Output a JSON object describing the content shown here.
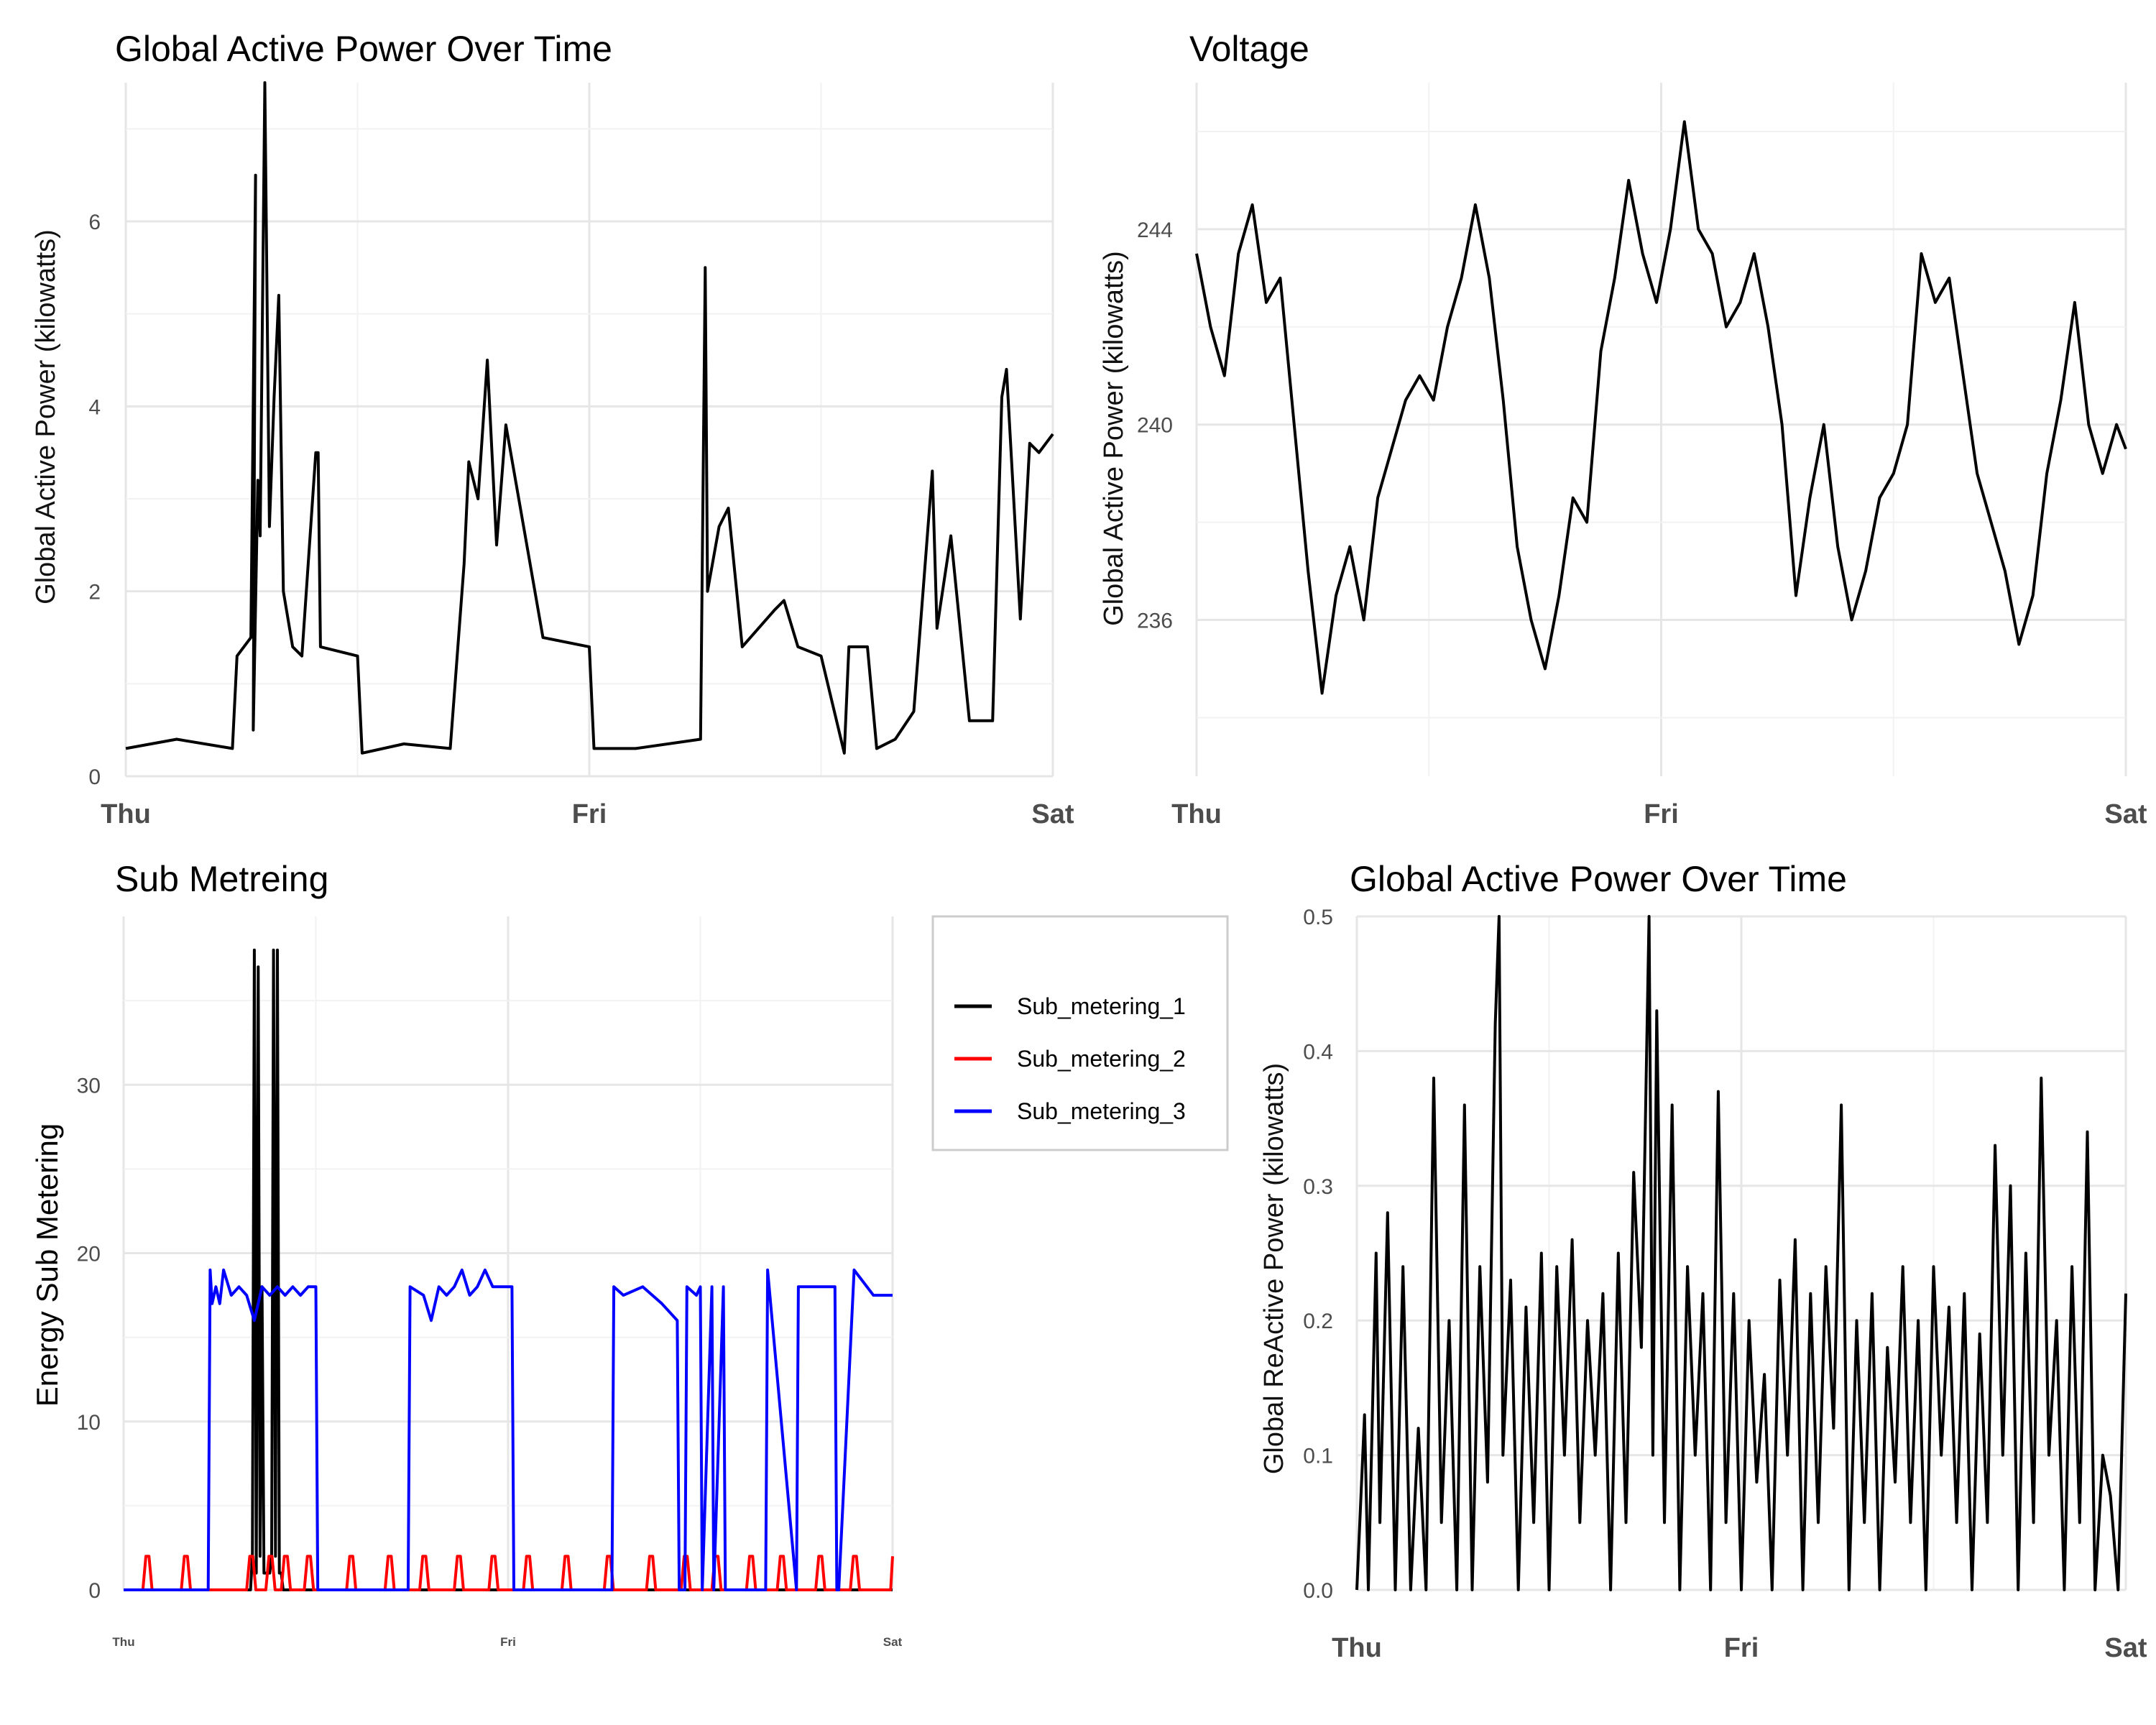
{
  "chart_data": [
    {
      "id": "p1",
      "type": "line",
      "title": "Global Active Power Over Time",
      "xlabel": "",
      "ylabel": "Global Active Power (kilowatts)",
      "x_tick_labels": [
        "Thu",
        "Fri",
        "Sat"
      ],
      "y_ticks": [
        0,
        2,
        4,
        6
      ],
      "xlim": [
        0,
        2
      ],
      "ylim": [
        0,
        7.5
      ],
      "grid": true,
      "line_color": "#000000",
      "x": [
        0,
        0.11,
        0.23,
        0.24,
        0.27,
        0.28,
        0.275,
        0.285,
        0.29,
        0.3,
        0.31,
        0.32,
        0.33,
        0.34,
        0.36,
        0.38,
        0.41,
        0.415,
        0.42,
        0.5,
        0.51,
        0.6,
        0.7,
        0.73,
        0.74,
        0.76,
        0.78,
        0.8,
        0.82,
        0.9,
        1.0,
        1.01,
        1.1,
        1.24,
        1.25,
        1.255,
        1.28,
        1.3,
        1.33,
        1.4,
        1.42,
        1.45,
        1.5,
        1.55,
        1.56,
        1.6,
        1.62,
        1.66,
        1.7,
        1.74,
        1.75,
        1.78,
        1.82,
        1.87,
        1.89,
        1.9,
        1.93,
        1.95,
        1.97,
        2.0
      ],
      "y": [
        0.3,
        0.4,
        0.3,
        1.3,
        1.5,
        6.5,
        0.5,
        3.2,
        2.6,
        7.5,
        2.7,
        4.1,
        5.2,
        2.0,
        1.4,
        1.3,
        3.5,
        3.5,
        1.4,
        1.3,
        0.25,
        0.35,
        0.3,
        2.3,
        3.4,
        3.0,
        4.5,
        2.5,
        3.8,
        1.5,
        1.4,
        0.3,
        0.3,
        0.4,
        5.5,
        2.0,
        2.7,
        2.9,
        1.4,
        1.8,
        1.9,
        1.4,
        1.3,
        0.25,
        1.4,
        1.4,
        0.3,
        0.4,
        0.7,
        3.3,
        1.6,
        2.6,
        0.6,
        0.6,
        4.1,
        4.4,
        1.7,
        3.6,
        3.5,
        3.7
      ]
    },
    {
      "id": "p2",
      "type": "line",
      "title": "Voltage",
      "xlabel": "",
      "ylabel": "Global Active Power (kilowatts)",
      "x_tick_labels": [
        "Thu",
        "Fri",
        "Sat"
      ],
      "y_ticks": [
        236,
        240,
        244
      ],
      "xlim": [
        0,
        2
      ],
      "ylim": [
        232.8,
        247.0
      ],
      "grid": true,
      "line_color": "#000000",
      "x": [
        0,
        0.03,
        0.06,
        0.09,
        0.12,
        0.15,
        0.18,
        0.21,
        0.24,
        0.27,
        0.3,
        0.33,
        0.36,
        0.39,
        0.42,
        0.45,
        0.48,
        0.51,
        0.54,
        0.57,
        0.6,
        0.63,
        0.66,
        0.69,
        0.72,
        0.75,
        0.78,
        0.81,
        0.84,
        0.87,
        0.9,
        0.93,
        0.96,
        0.99,
        1.02,
        1.05,
        1.08,
        1.11,
        1.14,
        1.17,
        1.2,
        1.23,
        1.26,
        1.29,
        1.32,
        1.35,
        1.38,
        1.41,
        1.44,
        1.47,
        1.5,
        1.53,
        1.56,
        1.59,
        1.62,
        1.65,
        1.68,
        1.71,
        1.74,
        1.77,
        1.8,
        1.83,
        1.86,
        1.89,
        1.92,
        1.95,
        1.98,
        2.0
      ],
      "y": [
        243.5,
        242.0,
        241.0,
        243.5,
        244.5,
        242.5,
        243.0,
        240.0,
        237.0,
        234.5,
        236.5,
        237.5,
        236.0,
        238.5,
        239.5,
        240.5,
        241.0,
        240.5,
        242.0,
        243.0,
        244.5,
        243.0,
        240.5,
        237.5,
        236.0,
        235.0,
        236.5,
        238.5,
        238.0,
        241.5,
        243.0,
        245.0,
        243.5,
        242.5,
        244.0,
        246.2,
        244.0,
        243.5,
        242.0,
        242.5,
        243.5,
        242.0,
        240.0,
        236.5,
        238.5,
        240.0,
        237.5,
        236.0,
        237.0,
        238.5,
        239.0,
        240.0,
        243.5,
        242.5,
        243.0,
        241.0,
        239.0,
        238.0,
        237.0,
        235.5,
        236.5,
        239.0,
        240.5,
        242.5,
        240.0,
        239.0,
        240.0,
        239.5
      ]
    },
    {
      "id": "p3",
      "type": "line",
      "title": "Sub Metreing",
      "xlabel": "",
      "ylabel": "Energy  Sub Metering",
      "x_tick_labels": [
        "Thu",
        "Fri",
        "Sat"
      ],
      "y_ticks": [
        0,
        10,
        20,
        30
      ],
      "xlim": [
        0,
        2
      ],
      "ylim": [
        0,
        40
      ],
      "grid": true,
      "legend": "right-top",
      "series": [
        {
          "name": "Sub_metering_1",
          "color": "#000000",
          "x": [
            0,
            0.33,
            0.335,
            0.34,
            0.345,
            0.35,
            0.355,
            0.36,
            0.365,
            0.38,
            0.385,
            0.39,
            0.395,
            0.4,
            0.405,
            0.41,
            0.415,
            0.42,
            0.425,
            0.43,
            2.0
          ],
          "y": [
            0,
            0,
            2,
            38,
            1,
            37,
            2,
            18,
            1,
            1,
            2,
            38,
            2,
            38,
            1,
            1,
            0,
            0,
            0,
            0,
            0
          ]
        },
        {
          "name": "Sub_metering_2",
          "color": "#ff0000",
          "x": [
            0,
            0.05,
            0.058,
            0.066,
            0.074,
            0.15,
            0.158,
            0.166,
            0.174,
            0.32,
            0.328,
            0.336,
            0.344,
            0.37,
            0.378,
            0.386,
            0.394,
            0.41,
            0.418,
            0.426,
            0.434,
            0.47,
            0.478,
            0.486,
            0.494,
            0.58,
            0.588,
            0.596,
            0.604,
            0.68,
            0.688,
            0.696,
            0.704,
            0.77,
            0.778,
            0.786,
            0.794,
            0.86,
            0.868,
            0.876,
            0.884,
            0.95,
            0.958,
            0.966,
            0.974,
            1.04,
            1.048,
            1.056,
            1.064,
            1.14,
            1.148,
            1.156,
            1.164,
            1.25,
            1.258,
            1.266,
            1.274,
            1.36,
            1.368,
            1.376,
            1.384,
            1.45,
            1.458,
            1.466,
            1.474,
            1.53,
            1.538,
            1.546,
            1.554,
            1.62,
            1.628,
            1.636,
            1.644,
            1.7,
            1.708,
            1.716,
            1.724,
            1.8,
            1.808,
            1.816,
            1.824,
            1.89,
            1.898,
            1.906,
            1.914,
            1.995,
            2.0
          ],
          "y": [
            0,
            0,
            2,
            2,
            0,
            0,
            2,
            2,
            0,
            0,
            2,
            2,
            0,
            0,
            2,
            2,
            0,
            0,
            2,
            2,
            0,
            0,
            2,
            2,
            0,
            0,
            2,
            2,
            0,
            0,
            2,
            2,
            0,
            0,
            2,
            2,
            0,
            0,
            2,
            2,
            0,
            0,
            2,
            2,
            0,
            0,
            2,
            2,
            0,
            0,
            2,
            2,
            0,
            0,
            2,
            2,
            0,
            0,
            2,
            2,
            0,
            0,
            2,
            2,
            0,
            0,
            2,
            2,
            0,
            0,
            2,
            2,
            0,
            0,
            2,
            2,
            0,
            0,
            2,
            2,
            0,
            0,
            2,
            2,
            0,
            0,
            2
          ]
        },
        {
          "name": "Sub_metering_3",
          "color": "#0000ff",
          "x": [
            0,
            0.22,
            0.225,
            0.23,
            0.24,
            0.25,
            0.26,
            0.28,
            0.3,
            0.32,
            0.34,
            0.36,
            0.38,
            0.4,
            0.42,
            0.44,
            0.46,
            0.48,
            0.5,
            0.505,
            0.74,
            0.745,
            0.78,
            0.8,
            0.82,
            0.84,
            0.86,
            0.88,
            0.9,
            0.92,
            0.94,
            0.96,
            0.98,
            1.0,
            1.01,
            1.015,
            1.27,
            1.275,
            1.3,
            1.35,
            1.4,
            1.44,
            1.445,
            1.46,
            1.465,
            1.49,
            1.5,
            1.505,
            1.53,
            1.535,
            1.56,
            1.565,
            1.67,
            1.675,
            1.75,
            1.755,
            1.85,
            1.855,
            1.86,
            1.9,
            1.95,
            2.0
          ],
          "y": [
            0,
            0,
            19,
            17,
            18,
            17,
            19,
            17.5,
            18,
            17.5,
            16,
            18,
            17.5,
            18,
            17.5,
            18,
            17.5,
            18,
            18,
            0,
            0,
            18,
            17.5,
            16,
            18,
            17.5,
            18,
            19,
            17.5,
            18,
            19,
            18,
            18,
            18,
            18,
            0,
            0,
            18,
            17.5,
            18,
            17,
            16,
            0,
            0,
            18,
            17.5,
            18,
            0,
            18,
            0,
            18,
            0,
            0,
            19,
            0,
            18,
            18,
            0,
            0,
            19,
            17.5,
            17.5
          ]
        }
      ]
    },
    {
      "id": "p4",
      "type": "line",
      "title": "Global Active Power Over Time",
      "xlabel": "",
      "ylabel": "Global ReActive Power (kilowatts)",
      "x_tick_labels": [
        "Thu",
        "Fri",
        "Sat"
      ],
      "y_ticks": [
        "0.0",
        "0.1",
        "0.2",
        "0.3",
        "0.4",
        "0.5"
      ],
      "xlim": [
        0,
        2
      ],
      "ylim": [
        0,
        0.5
      ],
      "grid": true,
      "line_color": "#000000",
      "x": [
        0,
        0.02,
        0.03,
        0.05,
        0.06,
        0.08,
        0.1,
        0.12,
        0.14,
        0.16,
        0.18,
        0.2,
        0.22,
        0.24,
        0.26,
        0.28,
        0.3,
        0.32,
        0.34,
        0.36,
        0.37,
        0.38,
        0.4,
        0.42,
        0.44,
        0.46,
        0.48,
        0.5,
        0.52,
        0.54,
        0.56,
        0.58,
        0.6,
        0.62,
        0.64,
        0.66,
        0.68,
        0.7,
        0.72,
        0.74,
        0.76,
        0.77,
        0.78,
        0.8,
        0.82,
        0.84,
        0.86,
        0.88,
        0.9,
        0.92,
        0.94,
        0.96,
        0.98,
        1.0,
        1.02,
        1.04,
        1.06,
        1.08,
        1.1,
        1.12,
        1.14,
        1.16,
        1.18,
        1.2,
        1.22,
        1.24,
        1.26,
        1.28,
        1.3,
        1.32,
        1.34,
        1.36,
        1.38,
        1.4,
        1.42,
        1.44,
        1.46,
        1.48,
        1.5,
        1.52,
        1.54,
        1.56,
        1.58,
        1.6,
        1.62,
        1.64,
        1.66,
        1.68,
        1.7,
        1.72,
        1.74,
        1.76,
        1.78,
        1.8,
        1.82,
        1.84,
        1.86,
        1.88,
        1.9,
        1.92,
        1.94,
        1.96,
        1.98,
        2.0
      ],
      "y": [
        0,
        0.13,
        0,
        0.25,
        0.05,
        0.28,
        0,
        0.24,
        0,
        0.12,
        0,
        0.38,
        0.05,
        0.2,
        0,
        0.36,
        0,
        0.24,
        0.08,
        0.42,
        0.5,
        0.1,
        0.23,
        0,
        0.21,
        0.05,
        0.25,
        0,
        0.24,
        0.1,
        0.26,
        0.05,
        0.2,
        0.1,
        0.22,
        0,
        0.25,
        0.05,
        0.31,
        0.18,
        0.5,
        0.1,
        0.43,
        0.05,
        0.36,
        0,
        0.24,
        0.1,
        0.22,
        0,
        0.37,
        0.05,
        0.22,
        0,
        0.2,
        0.08,
        0.16,
        0,
        0.23,
        0.1,
        0.26,
        0,
        0.22,
        0.05,
        0.24,
        0.12,
        0.36,
        0,
        0.2,
        0.05,
        0.22,
        0,
        0.18,
        0.08,
        0.24,
        0.05,
        0.2,
        0,
        0.24,
        0.1,
        0.21,
        0.05,
        0.22,
        0,
        0.19,
        0.05,
        0.33,
        0.1,
        0.3,
        0,
        0.25,
        0.05,
        0.38,
        0.1,
        0.2,
        0,
        0.24,
        0.05,
        0.34,
        0,
        0.1,
        0.07,
        0,
        0.22
      ]
    }
  ]
}
